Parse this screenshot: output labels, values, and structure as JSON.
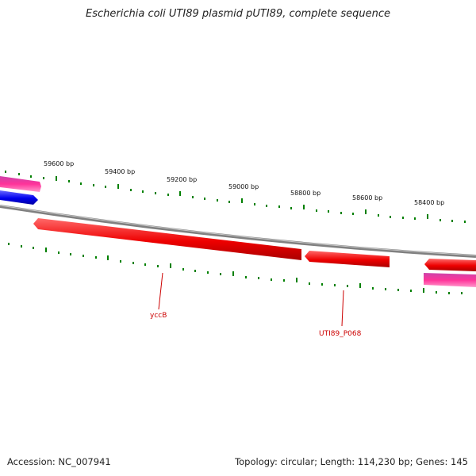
{
  "title": "Escherichia coli UTI89 plasmid pUTI89, complete sequence",
  "accession": "Accession: NC_007941",
  "summary": "Topology: circular; Length: 114,230 bp; Genes: 145",
  "ticks": [
    {
      "label": "59600 bp"
    },
    {
      "label": "59400 bp"
    },
    {
      "label": "59200 bp"
    },
    {
      "label": "59000 bp"
    },
    {
      "label": "58800 bp"
    },
    {
      "label": "58600 bp"
    },
    {
      "label": "58400 bp"
    }
  ],
  "gene_labels": [
    {
      "text": "yccB"
    },
    {
      "text": "UTI89_P068"
    }
  ],
  "colors": {
    "backbone": "#808080",
    "gene_reverse": "#ff0000",
    "gene_forward": "#0000ee",
    "gene_other": "#ff3399",
    "tick": "#008000",
    "label": "#cc0000"
  }
}
